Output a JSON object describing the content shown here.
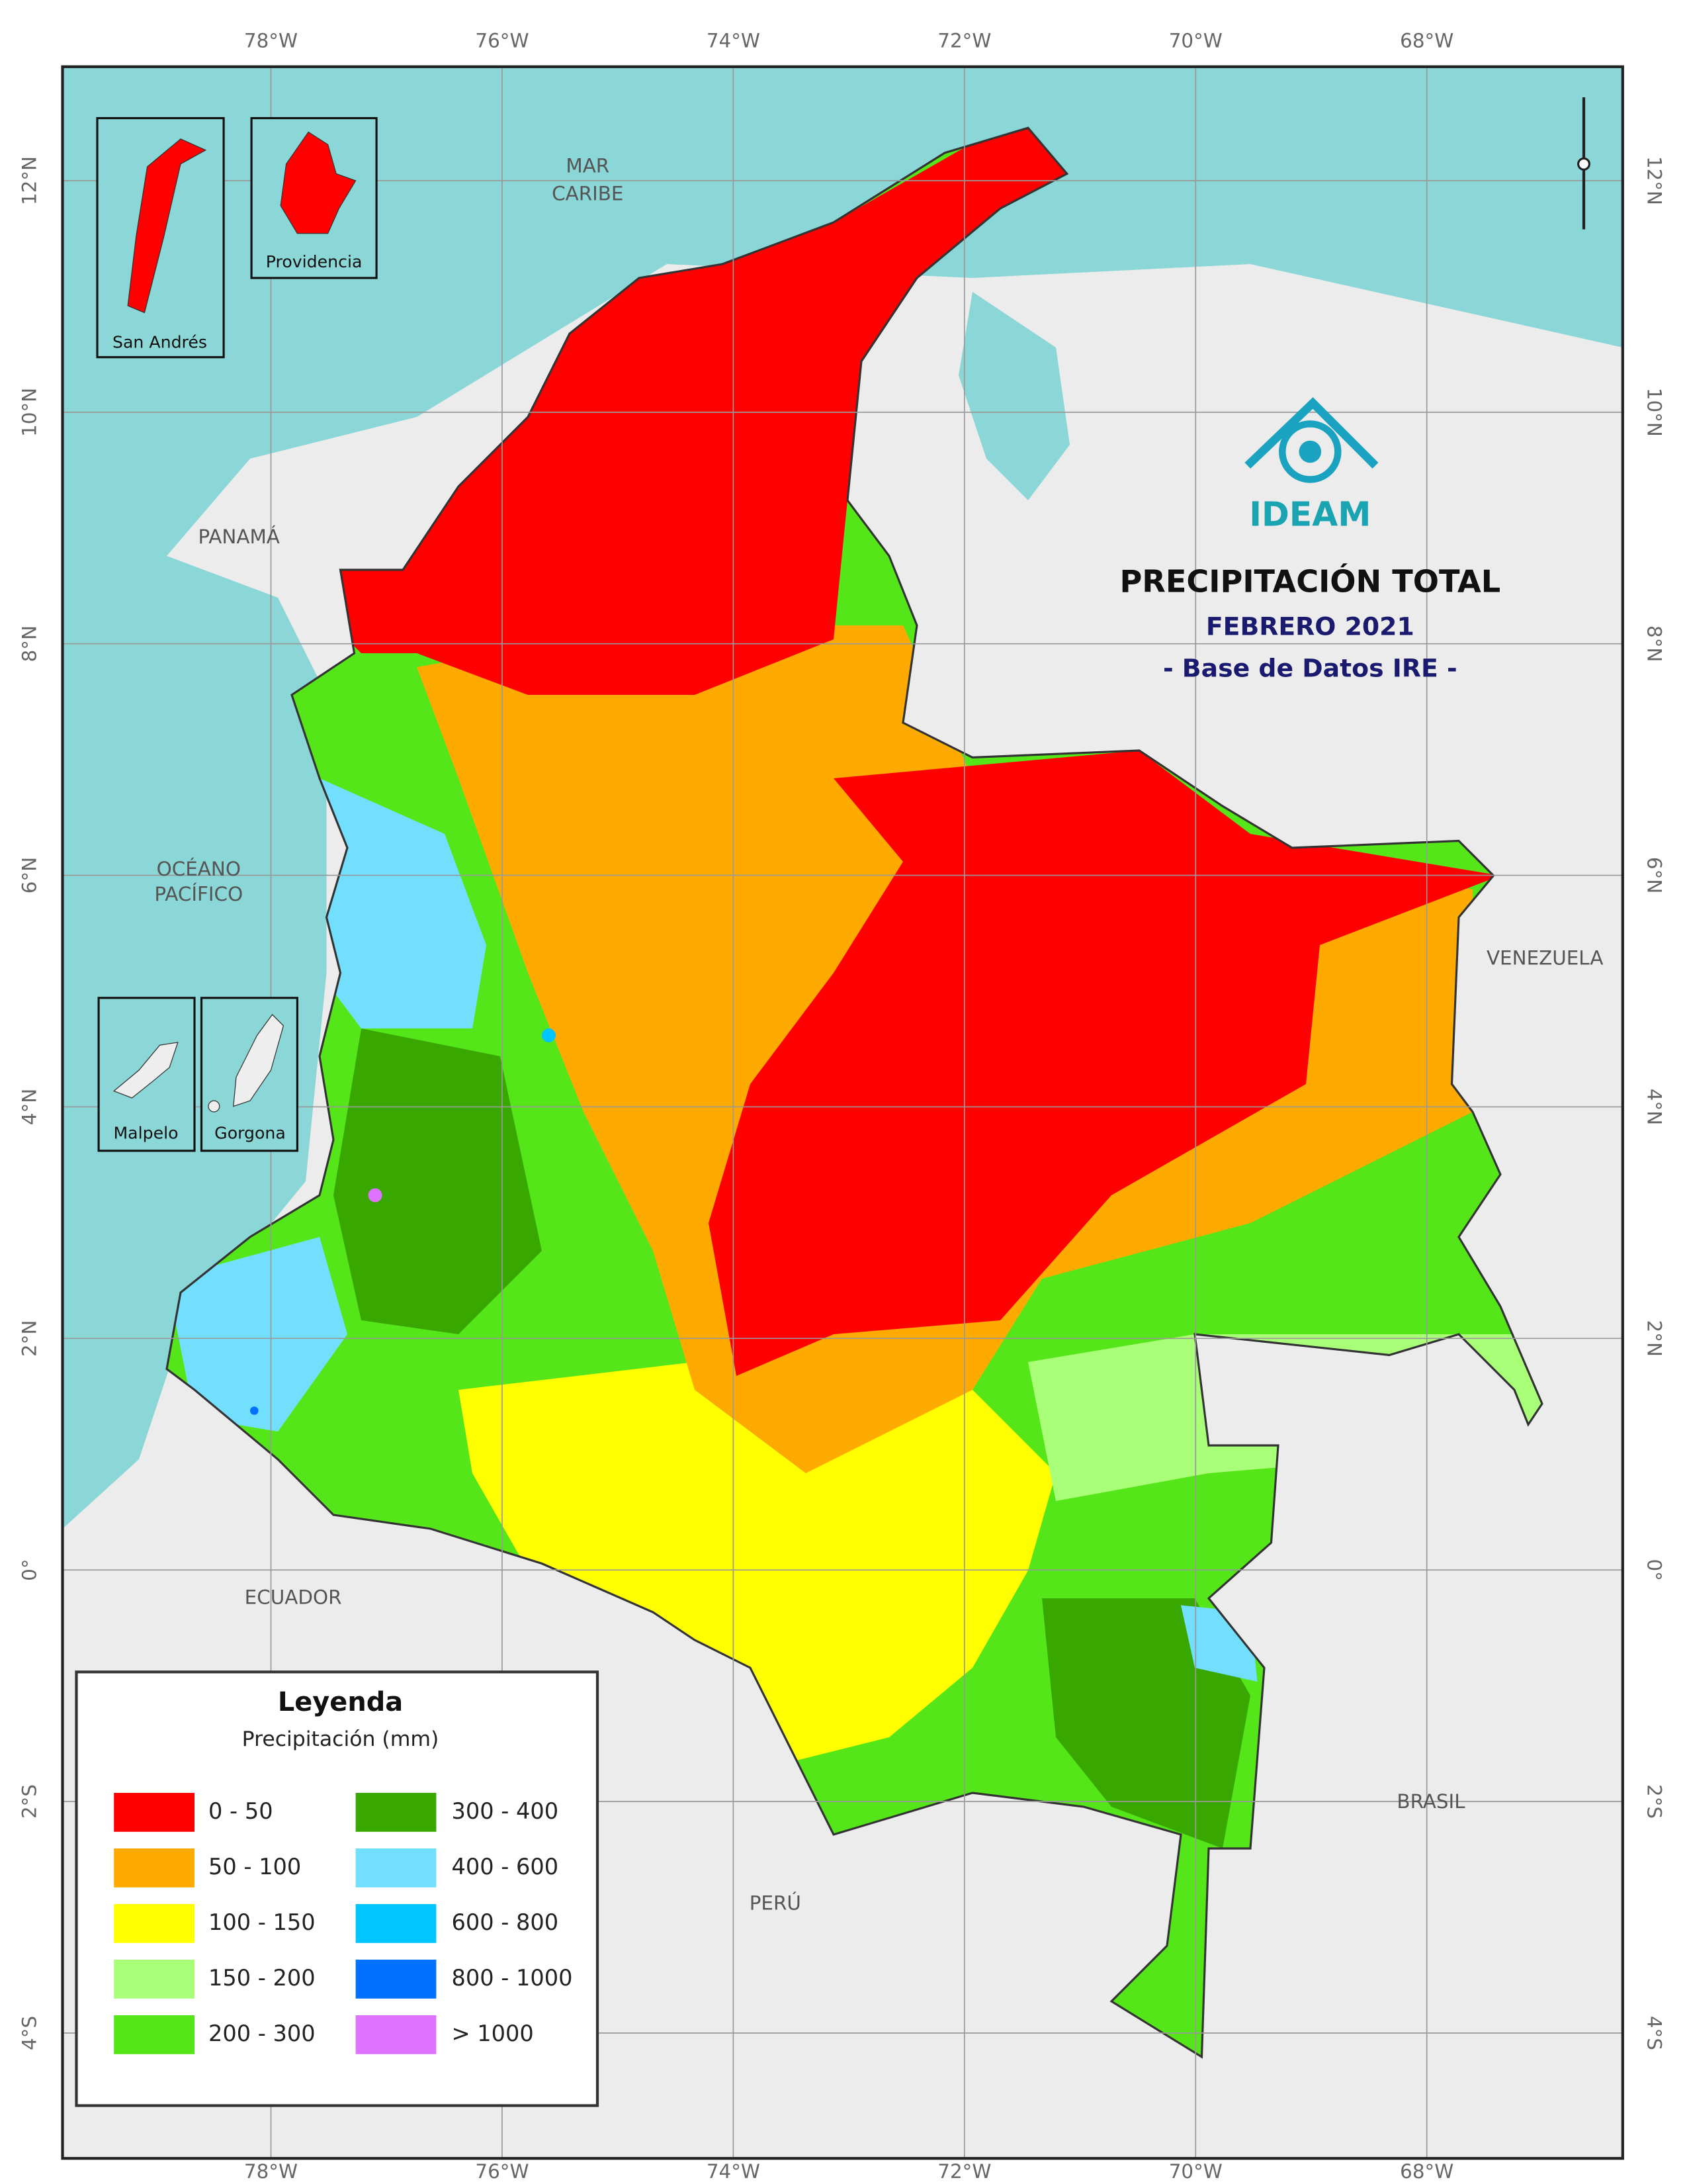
{
  "header": {
    "logo": "IDEAM",
    "title": "PRECIPITACIÓN TOTAL",
    "subtitle": "FEBRERO 2021",
    "source": "- Base de Datos IRE -"
  },
  "grid": {
    "longitudes": [
      "78°W",
      "76°W",
      "74°W",
      "72°W",
      "70°W",
      "68°W"
    ],
    "latitudes": [
      "12°N",
      "10°N",
      "8°N",
      "6°N",
      "4°N",
      "2°N",
      "0°",
      "2°S",
      "4°S"
    ]
  },
  "places": [
    "MAR",
    "CARIBE",
    "PANAMÁ",
    "OCÉANO",
    "PACÍFICO",
    "VENEZUELA",
    "ECUADOR",
    "PERÚ",
    "BRASIL"
  ],
  "insets": [
    "San Andrés",
    "Providencia",
    "Malpelo",
    "Gorgona"
  ],
  "legend": {
    "title": "Leyenda",
    "subtitle": "Precipitación (mm)",
    "items": [
      {
        "label": "0 - 50",
        "color": "#ff0000"
      },
      {
        "label": "50 - 100",
        "color": "#ffaa00"
      },
      {
        "label": "100 - 150",
        "color": "#ffff00"
      },
      {
        "label": "150 - 200",
        "color": "#aaff78"
      },
      {
        "label": "200 - 300",
        "color": "#55e619"
      },
      {
        "label": "300 - 400",
        "color": "#38a800"
      },
      {
        "label": "400 - 600",
        "color": "#73dfff"
      },
      {
        "label": "600 - 800",
        "color": "#00c5ff"
      },
      {
        "label": "800 - 1000",
        "color": "#0070ff"
      },
      {
        "label": "> 1000",
        "color": "#df73ff"
      }
    ]
  }
}
